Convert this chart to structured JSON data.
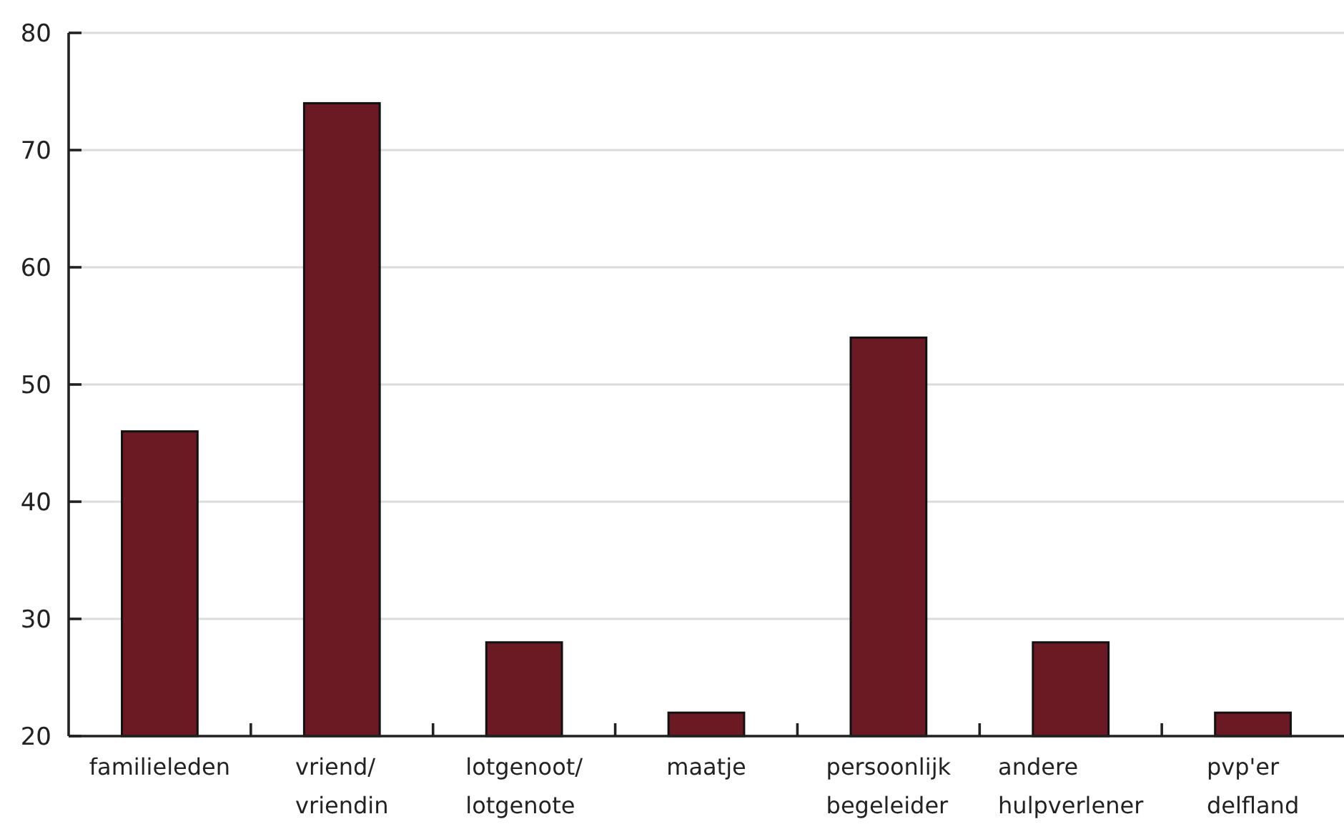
{
  "chart_data": {
    "type": "bar",
    "categories": [
      "familieleden",
      "vriend/ vriendin",
      "lotgenoot/ lotgenote",
      "maatje",
      "persoonlijk begeleider",
      "andere hulpverlener",
      "pvp'er delfland"
    ],
    "values": [
      46,
      74,
      28,
      22,
      54,
      28,
      22
    ],
    "color": "#6b1a24",
    "ylim": [
      20,
      80
    ],
    "yticks": [
      20,
      30,
      40,
      50,
      60,
      70,
      80
    ],
    "grid": "y"
  }
}
